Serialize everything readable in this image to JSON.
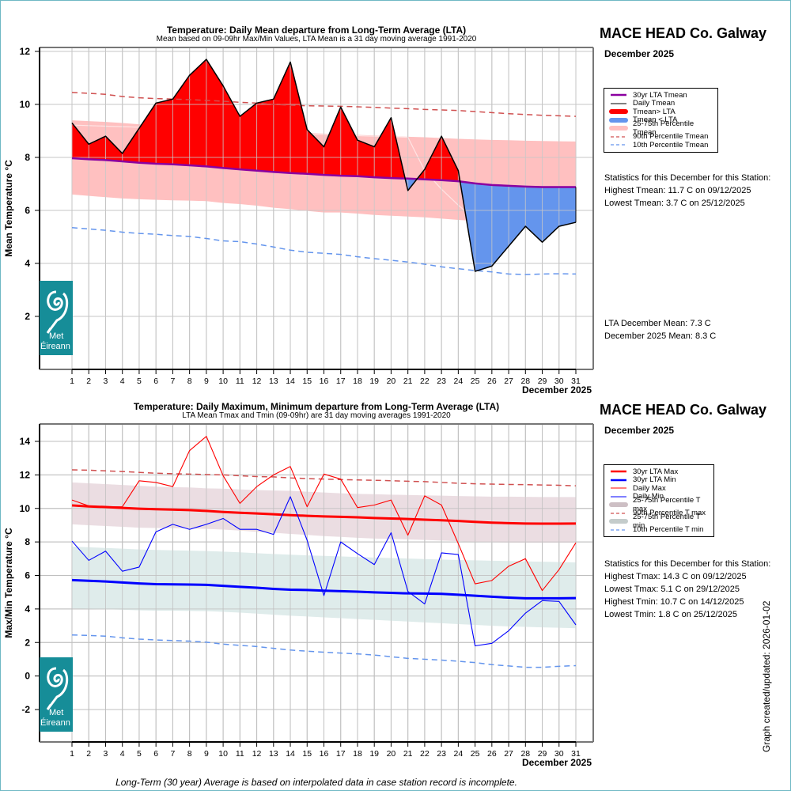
{
  "station": "MACE HEAD Co. Galway",
  "month_label": "December 2025",
  "footnote": "Long-Term (30 year) Average is based on interpolated data in case station record is incomplete.",
  "updated": "Graph created/updated:  2026-01-02",
  "logo": {
    "line1": "Met",
    "line2": "Éireann",
    "icon": "met-eireann-swirl-icon"
  },
  "colors": {
    "lta_mean": "#8b00a0",
    "above": "#ff0000",
    "below": "#6495ed",
    "band_mean": "#ffc0c0",
    "p90": "#d05050",
    "p10": "#6495ed",
    "lta_max": "#ff0000",
    "lta_min": "#0000ff",
    "daily_max": "#ff0000",
    "daily_min": "#0000ff",
    "band_max": "#ebdde2",
    "band_min": "#dfeceb"
  },
  "top_stats": {
    "heading": "Statistics for this December for this Station:",
    "lines": [
      "Highest Tmean: 11.7 C on 09/12/2025",
      "Lowest Tmean: 3.7 C on 25/12/2025"
    ],
    "lta_mean": "LTA December Mean: 7.3 C",
    "month_mean": "December 2025 Mean: 8.3 C"
  },
  "bottom_stats": {
    "heading": "Statistics for this December for this Station:",
    "lines": [
      "Highest Tmax: 14.3 C on 09/12/2025",
      "Lowest Tmax: 5.1 C on 29/12/2025",
      "Highest Tmin: 10.7 C on 14/12/2025",
      "Lowest Tmin: 1.8 C on 25/12/2025"
    ]
  },
  "top_legend": [
    {
      "label": "30yr LTA Tmean",
      "style": "thick-purple"
    },
    {
      "label": "Daily Tmean",
      "style": "thin-black"
    },
    {
      "label": "Tmean> LTA",
      "style": "fat-red"
    },
    {
      "label": "Tmean < LTA",
      "style": "fat-blue"
    },
    {
      "label": "25-75th Percentile Tmean",
      "style": "fat-pink"
    },
    {
      "label": "90th Percentile Tmean",
      "style": "dash-red"
    },
    {
      "label": "10th Percentile Tmean",
      "style": "dash-blue"
    }
  ],
  "bottom_legend": [
    {
      "label": "30yr LTA Max",
      "style": "thick-red"
    },
    {
      "label": "30yr LTA Min",
      "style": "thick-blue"
    },
    {
      "label": "Daily Max",
      "style": "thin-red"
    },
    {
      "label": "Daily Min",
      "style": "thin-blue"
    },
    {
      "label": "25-75th Percentile T max",
      "style": "fat-mauve"
    },
    {
      "label": "90th Percentile T max",
      "style": "dash-red"
    },
    {
      "label": "25-75th Percentile T min",
      "style": "fat-grey"
    },
    {
      "label": "10th Percentile T min",
      "style": "dash-blue"
    }
  ],
  "chart_data": [
    {
      "type": "area",
      "title": "Temperature: Daily Mean departure from Long-Term Average (LTA)",
      "subtitle": "Mean based on 09-09hr Max/Min Values, LTA Mean is a 31 day moving average 1991-2020",
      "xlabel": "December 2025",
      "ylabel": "Mean Temperature °C",
      "ylim": [
        0.5,
        12.2
      ],
      "yticks": [
        2,
        4,
        6,
        8,
        10,
        12
      ],
      "x": [
        1,
        2,
        3,
        4,
        5,
        6,
        7,
        8,
        9,
        10,
        11,
        12,
        13,
        14,
        15,
        16,
        17,
        18,
        19,
        20,
        21,
        22,
        23,
        24,
        25,
        26,
        27,
        28,
        29,
        30,
        31
      ],
      "grid": true,
      "series": [
        {
          "name": "Daily Tmean",
          "values": [
            9.3,
            8.5,
            8.8,
            8.15,
            9.1,
            10.05,
            10.2,
            11.1,
            11.7,
            10.7,
            9.55,
            10.05,
            10.2,
            11.6,
            9.05,
            8.4,
            9.9,
            8.65,
            8.4,
            9.5,
            6.75,
            7.55,
            8.8,
            7.5,
            3.7,
            3.9,
            4.65,
            5.4,
            4.8,
            5.4,
            5.55
          ]
        },
        {
          "name": "30yr LTA Tmean",
          "values": [
            7.97,
            7.93,
            7.9,
            7.85,
            7.8,
            7.76,
            7.74,
            7.7,
            7.66,
            7.6,
            7.55,
            7.5,
            7.45,
            7.41,
            7.38,
            7.34,
            7.31,
            7.29,
            7.25,
            7.22,
            7.2,
            7.17,
            7.14,
            7.1,
            7.02,
            6.96,
            6.93,
            6.9,
            6.88,
            6.88,
            6.88
          ]
        },
        {
          "name": "90th Percentile Tmean",
          "values": [
            10.45,
            10.42,
            10.38,
            10.3,
            10.25,
            10.22,
            10.2,
            10.18,
            10.15,
            10.12,
            10.08,
            10.05,
            10.0,
            9.97,
            9.95,
            9.94,
            9.93,
            9.91,
            9.89,
            9.86,
            9.84,
            9.81,
            9.79,
            9.77,
            9.73,
            9.69,
            9.65,
            9.62,
            9.59,
            9.57,
            9.55
          ]
        },
        {
          "name": "10th Percentile Tmean",
          "values": [
            5.35,
            5.3,
            5.25,
            5.18,
            5.13,
            5.1,
            5.05,
            5.02,
            4.94,
            4.85,
            4.82,
            4.73,
            4.62,
            4.5,
            4.42,
            4.38,
            4.34,
            4.25,
            4.18,
            4.12,
            4.05,
            3.97,
            3.87,
            3.8,
            3.73,
            3.68,
            3.6,
            3.58,
            3.6,
            3.61,
            3.6
          ]
        },
        {
          "name": "25th Percentile Tmean",
          "values": [
            6.6,
            6.55,
            6.5,
            6.45,
            6.42,
            6.4,
            6.38,
            6.37,
            6.35,
            6.28,
            6.24,
            6.18,
            6.1,
            6.05,
            5.98,
            5.92,
            5.92,
            5.88,
            5.83,
            5.8,
            5.77,
            5.74,
            5.69,
            5.64,
            5.6,
            5.57,
            5.56,
            5.55,
            5.54,
            5.54,
            5.55
          ]
        },
        {
          "name": "75th Percentile Tmean",
          "values": [
            9.4,
            9.37,
            9.34,
            9.3,
            9.25,
            9.22,
            9.2,
            9.18,
            9.14,
            9.1,
            9.05,
            9.0,
            8.98,
            8.95,
            8.92,
            8.9,
            8.87,
            8.85,
            8.83,
            8.8,
            8.78,
            8.76,
            8.73,
            8.7,
            8.68,
            8.66,
            8.65,
            8.63,
            8.62,
            8.61,
            8.6
          ]
        },
        {
          "name": "Median Tmean",
          "values": [
            9.22,
            9.2,
            9.18,
            9.16,
            9.14,
            9.12,
            9.1,
            9.08,
            9.05,
            9.0,
            8.97,
            8.94,
            8.92,
            8.9,
            8.88,
            8.87,
            8.84,
            8.82,
            8.8,
            8.78,
            8.76,
            7.5,
            6.8,
            6.2,
            5.65,
            5.6,
            5.56,
            5.54,
            5.53,
            5.53,
            5.55
          ]
        }
      ]
    },
    {
      "type": "line",
      "title": "Temperature: Daily Maximum, Minimum departure from Long-Term Average (LTA)",
      "subtitle": "LTA Mean Tmax and Tmin (09-09hr) are 31 day moving averages 1991-2020",
      "xlabel": "December 2025",
      "ylabel": "Max/Min Temperature °C",
      "ylim": [
        -3.9,
        15.0
      ],
      "yticks": [
        -2,
        0,
        2,
        4,
        6,
        8,
        10,
        12,
        14
      ],
      "x": [
        1,
        2,
        3,
        4,
        5,
        6,
        7,
        8,
        9,
        10,
        11,
        12,
        13,
        14,
        15,
        16,
        17,
        18,
        19,
        20,
        21,
        22,
        23,
        24,
        25,
        26,
        27,
        28,
        29,
        30,
        31
      ],
      "grid": true,
      "series": [
        {
          "name": "Daily Max",
          "values": [
            10.5,
            10.15,
            10.1,
            10.1,
            11.65,
            11.55,
            11.3,
            13.45,
            14.3,
            11.95,
            10.3,
            11.3,
            12.0,
            12.5,
            10.1,
            12.05,
            11.75,
            10.05,
            10.2,
            10.5,
            8.4,
            10.75,
            10.2,
            7.9,
            5.5,
            5.7,
            6.55,
            7.0,
            5.1,
            6.35,
            7.95
          ]
        },
        {
          "name": "Daily Min",
          "values": [
            8.05,
            6.9,
            7.45,
            6.25,
            6.5,
            8.6,
            9.05,
            8.75,
            9.05,
            9.4,
            8.75,
            8.75,
            8.45,
            10.7,
            8.1,
            4.8,
            8.0,
            7.3,
            6.65,
            8.55,
            5.05,
            4.3,
            7.35,
            7.25,
            1.8,
            1.95,
            2.7,
            3.75,
            4.5,
            4.45,
            3.05
          ]
        },
        {
          "name": "30yr LTA Max",
          "values": [
            10.18,
            10.12,
            10.08,
            10.03,
            9.98,
            9.95,
            9.93,
            9.9,
            9.85,
            9.79,
            9.74,
            9.7,
            9.65,
            9.6,
            9.56,
            9.52,
            9.5,
            9.47,
            9.43,
            9.4,
            9.37,
            9.33,
            9.29,
            9.25,
            9.2,
            9.15,
            9.12,
            9.1,
            9.09,
            9.09,
            9.1
          ]
        },
        {
          "name": "30yr LTA Min",
          "values": [
            5.72,
            5.68,
            5.64,
            5.58,
            5.52,
            5.48,
            5.47,
            5.46,
            5.44,
            5.38,
            5.32,
            5.27,
            5.2,
            5.15,
            5.13,
            5.09,
            5.06,
            5.03,
            4.99,
            4.96,
            4.93,
            4.92,
            4.9,
            4.85,
            4.79,
            4.73,
            4.68,
            4.64,
            4.64,
            4.64,
            4.65
          ]
        },
        {
          "name": "90th Percentile T max",
          "values": [
            12.3,
            12.28,
            12.24,
            12.2,
            12.15,
            12.1,
            12.07,
            12.05,
            12.02,
            12.0,
            11.95,
            11.9,
            11.88,
            11.82,
            11.78,
            11.75,
            11.72,
            11.7,
            11.68,
            11.65,
            11.62,
            11.6,
            11.55,
            11.5,
            11.47,
            11.45,
            11.43,
            11.42,
            11.4,
            11.38,
            11.35
          ]
        },
        {
          "name": "10th Percentile T min",
          "values": [
            2.45,
            2.42,
            2.38,
            2.28,
            2.2,
            2.15,
            2.12,
            2.08,
            2.02,
            1.9,
            1.83,
            1.76,
            1.65,
            1.55,
            1.48,
            1.42,
            1.37,
            1.32,
            1.25,
            1.15,
            1.05,
            1.0,
            0.95,
            0.88,
            0.8,
            0.68,
            0.6,
            0.52,
            0.52,
            0.58,
            0.62
          ]
        },
        {
          "name": "25th Percentile T max",
          "values": [
            9.05,
            9.0,
            8.95,
            8.9,
            8.85,
            8.83,
            8.82,
            8.8,
            8.78,
            8.74,
            8.68,
            8.6,
            8.55,
            8.48,
            8.42,
            8.35,
            8.3,
            8.25,
            8.2,
            8.18,
            8.15,
            8.12,
            8.08,
            8.05,
            8.0,
            7.98,
            7.96,
            7.95,
            7.95,
            7.95,
            7.95
          ]
        },
        {
          "name": "75th Percentile T max",
          "values": [
            11.55,
            11.5,
            11.45,
            11.4,
            11.35,
            11.3,
            11.27,
            11.25,
            11.2,
            11.18,
            11.13,
            11.1,
            11.07,
            11.05,
            11.0,
            10.95,
            10.9,
            10.87,
            10.85,
            10.82,
            10.8,
            10.78,
            10.76,
            10.74,
            10.72,
            10.7,
            10.7,
            10.69,
            10.68,
            10.68,
            10.68
          ]
        },
        {
          "name": "25th Percentile T min",
          "values": [
            4.05,
            4.0,
            3.98,
            3.95,
            3.92,
            3.9,
            3.9,
            3.88,
            3.87,
            3.83,
            3.78,
            3.72,
            3.66,
            3.6,
            3.55,
            3.5,
            3.45,
            3.4,
            3.35,
            3.3,
            3.25,
            3.2,
            3.15,
            3.1,
            3.05,
            3.0,
            2.96,
            2.93,
            2.9,
            2.88,
            2.85
          ]
        },
        {
          "name": "75th Percentile T min",
          "values": [
            7.72,
            7.68,
            7.64,
            7.6,
            7.55,
            7.52,
            7.5,
            7.48,
            7.46,
            7.42,
            7.38,
            7.33,
            7.28,
            7.24,
            7.2,
            7.17,
            7.14,
            7.1,
            7.07,
            7.04,
            7.01,
            6.98,
            6.95,
            6.92,
            6.9,
            6.88,
            6.86,
            6.84,
            6.82,
            6.8,
            6.78
          ]
        }
      ]
    }
  ]
}
